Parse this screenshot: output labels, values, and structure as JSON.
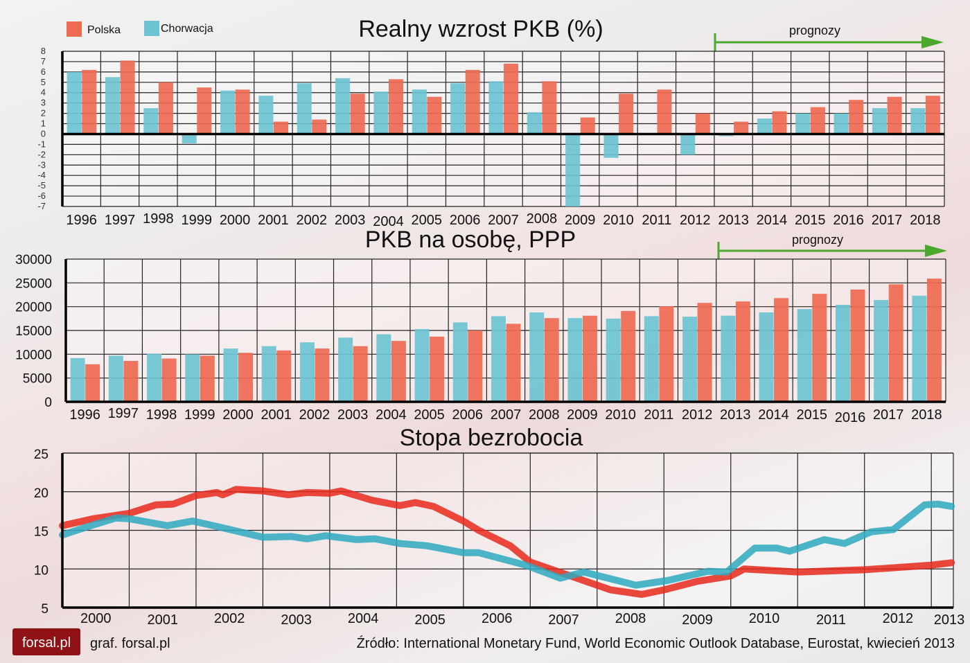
{
  "legend": [
    {
      "name": "Polska",
      "color": "#ee6a52"
    },
    {
      "name": "Chorwacja",
      "color": "#6cc3d2"
    }
  ],
  "forecast_label": "prognozy",
  "forecast_arrow_color": "#4aa82c",
  "footer": {
    "logo_text": "forsal.pl",
    "credit": "graf. forsal.pl",
    "source": "Źródło: International Monetary Fund, World Economic Outlook Database, Eurostat, kwiecień 2013"
  },
  "chart_data": [
    {
      "type": "bar",
      "title": "Realny wzrost PKB (%)",
      "categories": [
        "1996",
        "1997",
        "1998",
        "1999",
        "2000",
        "2001",
        "2002",
        "2003",
        "2004",
        "2005",
        "2006",
        "2007",
        "2008",
        "2009",
        "2010",
        "2011",
        "2012",
        "2013",
        "2014",
        "2015",
        "2016",
        "2017",
        "2018"
      ],
      "forecast_from": "2013",
      "ylim": [
        -7,
        8
      ],
      "yticks": [
        8,
        7,
        6,
        5,
        4,
        3,
        2,
        1,
        0,
        -1,
        -2,
        -3,
        -4,
        -5,
        -6,
        -7
      ],
      "grid": true,
      "legend": "top-left",
      "series": [
        {
          "name": "Chorwacja",
          "color": "#6cc3d2",
          "values": [
            6.0,
            5.5,
            2.5,
            -0.9,
            4.2,
            3.7,
            4.9,
            5.4,
            4.1,
            4.3,
            4.9,
            5.1,
            2.1,
            -7.0,
            -2.3,
            0.0,
            -2.0,
            -0.2,
            1.5,
            2.0,
            2.0,
            2.5,
            2.5
          ]
        },
        {
          "name": "Polska",
          "color": "#ee6a52",
          "values": [
            6.2,
            7.1,
            5.0,
            4.5,
            4.3,
            1.2,
            1.4,
            3.9,
            5.3,
            3.6,
            6.2,
            6.8,
            5.1,
            1.6,
            3.9,
            4.3,
            2.0,
            1.2,
            2.2,
            2.6,
            3.3,
            3.6,
            3.7
          ]
        }
      ]
    },
    {
      "type": "bar",
      "title": "PKB na osobę, PPP",
      "categories": [
        "1996",
        "1997",
        "1998",
        "1999",
        "2000",
        "2001",
        "2002",
        "2003",
        "2004",
        "2005",
        "2006",
        "2007",
        "2008",
        "2009",
        "2010",
        "2011",
        "2012",
        "2013",
        "2014",
        "2015",
        "2016",
        "2017",
        "2018"
      ],
      "forecast_from": "2013",
      "ylim": [
        0,
        30000
      ],
      "yticks": [
        30000,
        25000,
        20000,
        15000,
        10000,
        5000,
        0
      ],
      "grid": true,
      "series": [
        {
          "name": "Chorwacja",
          "color": "#6cc3d2",
          "values": [
            9200,
            9700,
            10100,
            10000,
            11200,
            11700,
            12500,
            13500,
            14200,
            15300,
            16700,
            18000,
            18800,
            17600,
            17500,
            18000,
            17900,
            18100,
            18800,
            19500,
            20400,
            21400,
            22300
          ]
        },
        {
          "name": "Polska",
          "color": "#ee6a52",
          "values": [
            7900,
            8600,
            9100,
            9700,
            10300,
            10800,
            11200,
            11700,
            12800,
            13700,
            15000,
            16400,
            17600,
            18100,
            19100,
            20100,
            20800,
            21100,
            21800,
            22700,
            23600,
            24700,
            25900
          ]
        }
      ]
    },
    {
      "type": "line",
      "title": "Stopa bezrobocia",
      "xticks": [
        "2000",
        "2001",
        "2002",
        "2003",
        "2004",
        "2005",
        "2006",
        "2007",
        "2008",
        "2009",
        "2010",
        "2011",
        "2012",
        "2013"
      ],
      "xlim": [
        2000,
        2013.33
      ],
      "ylim": [
        5,
        25
      ],
      "yticks": [
        25,
        20,
        15,
        10,
        5
      ],
      "grid": true,
      "series": [
        {
          "name": "Polska",
          "color": "#e8291c",
          "x": [
            2000.0,
            2000.46,
            2001.0,
            2001.4,
            2001.66,
            2002.0,
            2002.31,
            2002.4,
            2002.6,
            2003.0,
            2003.38,
            2003.66,
            2004.0,
            2004.17,
            2004.63,
            2005.05,
            2005.28,
            2005.55,
            2006.0,
            2006.23,
            2006.7,
            2007.0,
            2007.6,
            2008.2,
            2008.67,
            2009.0,
            2009.5,
            2010.0,
            2010.2,
            2011.0,
            2012.0,
            2013.0,
            2013.3
          ],
          "y": [
            15.6,
            16.5,
            17.2,
            18.3,
            18.4,
            19.5,
            19.9,
            19.6,
            20.3,
            20.1,
            19.6,
            19.9,
            19.8,
            20.1,
            18.9,
            18.2,
            18.6,
            18.1,
            16.2,
            15.0,
            13.0,
            10.9,
            9.1,
            7.3,
            6.7,
            7.3,
            8.4,
            9.1,
            10.0,
            9.6,
            9.9,
            10.5,
            10.8
          ]
        },
        {
          "name": "Chorwacja",
          "color": "#2ea9c0",
          "x": [
            2000.0,
            2000.46,
            2000.8,
            2001.0,
            2001.57,
            2001.95,
            2002.31,
            2003.0,
            2003.43,
            2003.66,
            2003.94,
            2004.4,
            2004.68,
            2005.05,
            2005.46,
            2006.0,
            2006.23,
            2006.93,
            2007.45,
            2007.8,
            2008.58,
            2009.05,
            2009.66,
            2009.94,
            2010.36,
            2010.69,
            2010.88,
            2011.4,
            2011.7,
            2012.1,
            2012.43,
            2012.9,
            2013.1,
            2013.3
          ],
          "y": [
            14.4,
            15.7,
            16.6,
            16.5,
            15.6,
            16.2,
            15.5,
            14.1,
            14.2,
            13.9,
            14.3,
            13.8,
            13.9,
            13.3,
            13.0,
            12.1,
            12.1,
            10.5,
            8.8,
            9.6,
            7.9,
            8.5,
            9.7,
            9.6,
            12.7,
            12.7,
            12.3,
            13.8,
            13.3,
            14.8,
            15.1,
            18.3,
            18.4,
            18.1
          ]
        }
      ]
    }
  ]
}
